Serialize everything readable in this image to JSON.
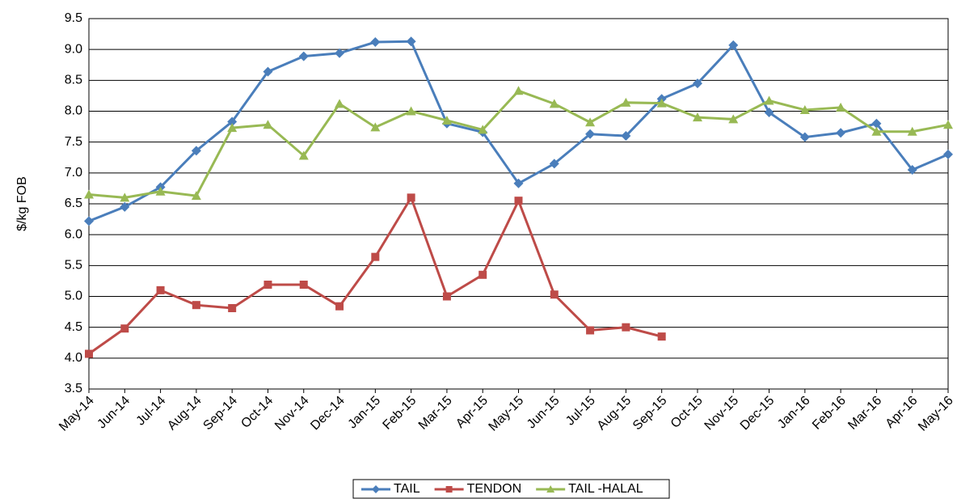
{
  "chart_data": {
    "type": "line",
    "ylabel": "$/kg FOB",
    "categories": [
      "May-14",
      "Jun-14",
      "Jul-14",
      "Aug-14",
      "Sep-14",
      "Oct-14",
      "Nov-14",
      "Dec-14",
      "Jan-15",
      "Feb-15",
      "Mar-15",
      "Apr-15",
      "May-15",
      "Jun-15",
      "Jul-15",
      "Aug-15",
      "Sep-15",
      "Oct-15",
      "Nov-15",
      "Dec-15",
      "Jan-16",
      "Feb-16",
      "Mar-16",
      "Apr-16",
      "May-16"
    ],
    "series": [
      {
        "name": "TAIL",
        "color": "#4a7ebb",
        "marker": "diamond",
        "values": [
          6.22,
          6.45,
          6.77,
          7.36,
          7.83,
          8.64,
          8.89,
          8.94,
          9.12,
          9.13,
          7.8,
          7.66,
          6.83,
          7.15,
          7.63,
          7.6,
          8.2,
          8.45,
          9.07,
          7.98,
          7.58,
          7.65,
          7.8,
          7.05,
          7.3
        ]
      },
      {
        "name": "TENDON",
        "color": "#be4b48",
        "marker": "square",
        "values": [
          4.07,
          4.48,
          5.1,
          4.86,
          4.81,
          5.19,
          5.19,
          4.84,
          5.64,
          6.6,
          5.0,
          5.35,
          6.55,
          5.03,
          4.45,
          4.5,
          4.35,
          null,
          null,
          null,
          null,
          null,
          null,
          null,
          null
        ]
      },
      {
        "name": "TAIL -HALAL",
        "color": "#98b954",
        "marker": "triangle",
        "values": [
          6.65,
          6.6,
          6.7,
          6.63,
          7.73,
          7.78,
          7.28,
          8.12,
          7.74,
          8.0,
          7.85,
          7.7,
          8.33,
          8.12,
          7.82,
          8.14,
          8.13,
          7.9,
          7.87,
          8.17,
          8.02,
          8.06,
          7.67,
          7.67,
          7.78
        ]
      }
    ],
    "ylim": [
      3.5,
      9.5
    ],
    "yticks": [
      3.5,
      {
        "value": 4,
        "label": "4.0"
      },
      4.5,
      {
        "value": 5,
        "label": "5.0"
      },
      5.5,
      {
        "value": 6,
        "label": "6.0"
      },
      6.5,
      {
        "value": 7,
        "label": "7.0"
      },
      7.5,
      {
        "value": 8,
        "label": "8.0"
      },
      8.5,
      {
        "value": 9,
        "label": "9.0"
      },
      9.5
    ],
    "grid": true,
    "legend": "bottom"
  }
}
